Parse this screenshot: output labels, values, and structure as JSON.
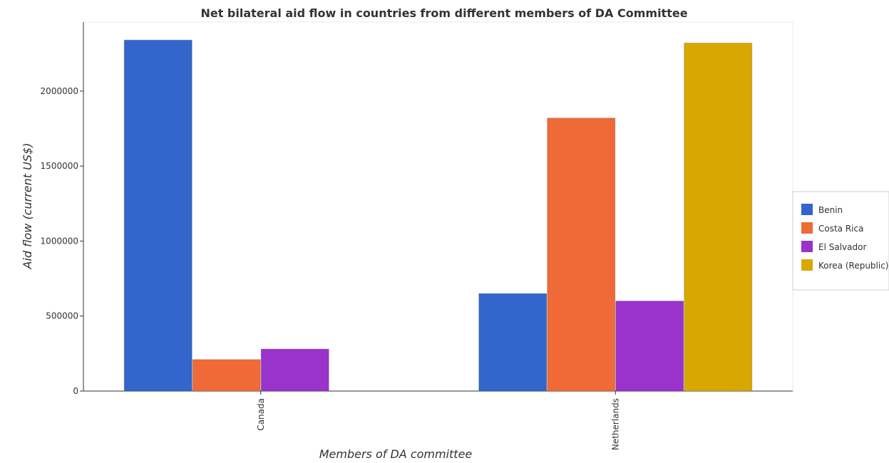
{
  "chart_data": {
    "type": "bar",
    "title": "Net bilateral aid flow in countries from different members of DA Committee",
    "xlabel": "Members of DA committee",
    "ylabel": "Aid flow (current US$)",
    "categories": [
      "Canada",
      "Netherlands"
    ],
    "series": [
      {
        "name": "Benin",
        "color": "#3366cc",
        "values": [
          2340000,
          650000
        ]
      },
      {
        "name": "Costa Rica",
        "color": "#ef6a36",
        "values": [
          210000,
          1820000
        ]
      },
      {
        "name": "El Salvador",
        "color": "#9933cc",
        "values": [
          280000,
          600000
        ]
      },
      {
        "name": "Korea (Republic)",
        "color": "#d9a800",
        "values": [
          0,
          2320000
        ]
      }
    ],
    "yticks": [
      0,
      500000,
      1000000,
      1500000,
      2000000
    ],
    "ytick_labels": [
      "0",
      "500000",
      "1000000",
      "1500000",
      "2000000"
    ],
    "ylim": [
      0,
      2460000
    ],
    "grid": false,
    "legend_position": "right"
  }
}
